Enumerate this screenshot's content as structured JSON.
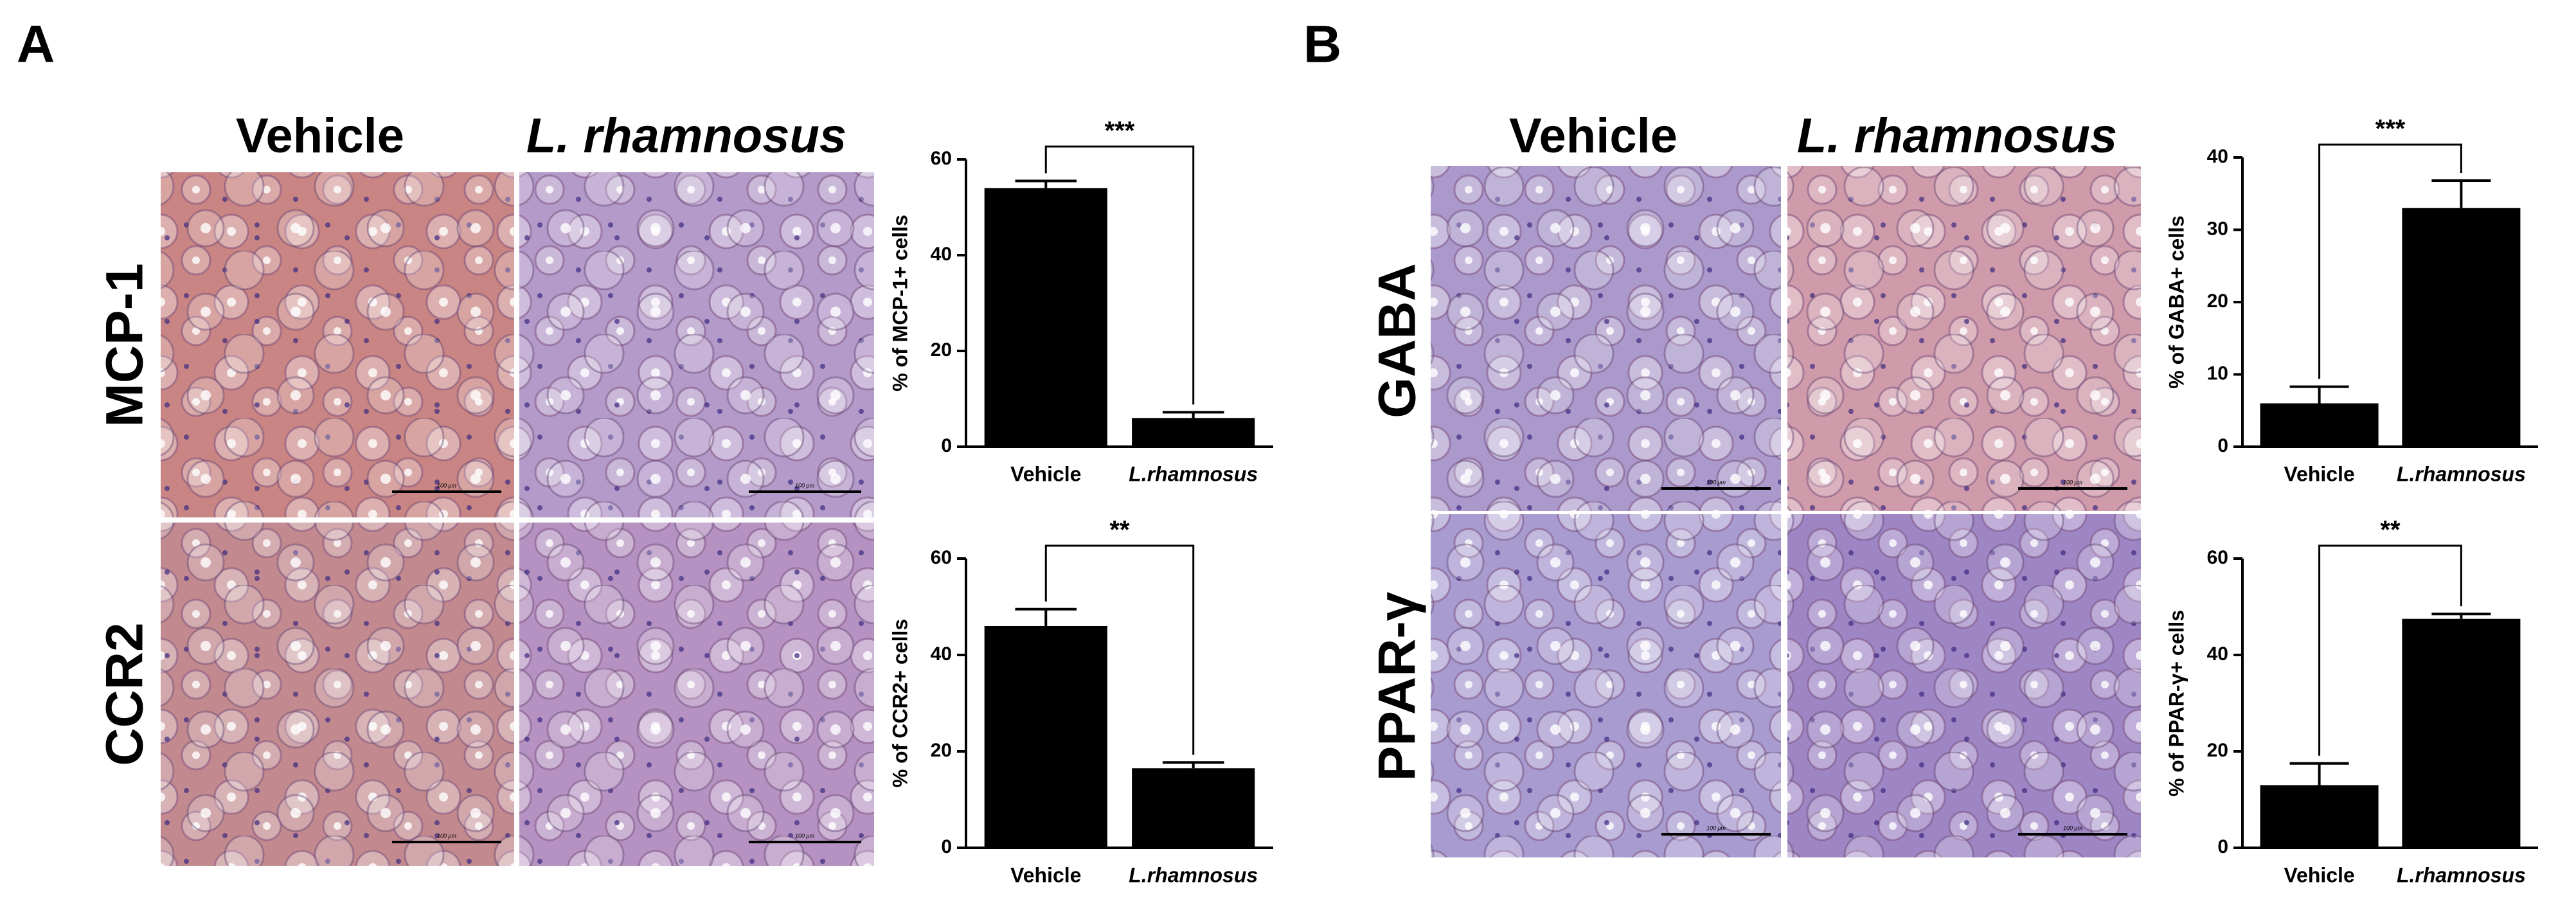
{
  "panels": [
    {
      "label": "A",
      "columns": [
        "Vehicle",
        "L. rhamnosus"
      ],
      "rows": [
        "MCP-1",
        "CCR2"
      ]
    },
    {
      "label": "B",
      "columns": [
        "Vehicle",
        "L. rhamnosus"
      ],
      "rows": [
        "GABA",
        "PPAR-γ"
      ]
    }
  ],
  "scale_bar": "100 μm",
  "chart_data": [
    {
      "type": "bar",
      "y_label": "% of MCP-1+ cells",
      "categories": [
        "Vehicle",
        "L.rhamnosus"
      ],
      "values": [
        54,
        6
      ],
      "errors": [
        1.5,
        1.2
      ],
      "color": "#000000",
      "ylim": [
        0,
        60
      ],
      "yticks": [
        0,
        20,
        40,
        60
      ],
      "significance": "***"
    },
    {
      "type": "bar",
      "y_label": "% of CCR2+ cells",
      "categories": [
        "Vehicle",
        "L.rhamnosus"
      ],
      "values": [
        46,
        16.5
      ],
      "errors": [
        3.5,
        1.2
      ],
      "color": "#000000",
      "ylim": [
        0,
        60
      ],
      "yticks": [
        0,
        20,
        40,
        60
      ],
      "significance": "**"
    },
    {
      "type": "bar",
      "y_label": "% of GABA+ cells",
      "categories": [
        "Vehicle",
        "L.rhamnosus"
      ],
      "values": [
        6,
        33
      ],
      "errors": [
        2.3,
        3.8
      ],
      "color": "#000000",
      "ylim": [
        0,
        40
      ],
      "yticks": [
        0,
        10,
        20,
        30,
        40
      ],
      "significance": "***"
    },
    {
      "type": "bar",
      "y_label": "% of PPAR-γ+ cells",
      "categories": [
        "Vehicle",
        "L.rhamnosus"
      ],
      "values": [
        13,
        47.5
      ],
      "errors": [
        4.5,
        1
      ],
      "color": "#000000",
      "ylim": [
        0,
        60
      ],
      "yticks": [
        0,
        20,
        40,
        60
      ],
      "significance": "**"
    }
  ]
}
